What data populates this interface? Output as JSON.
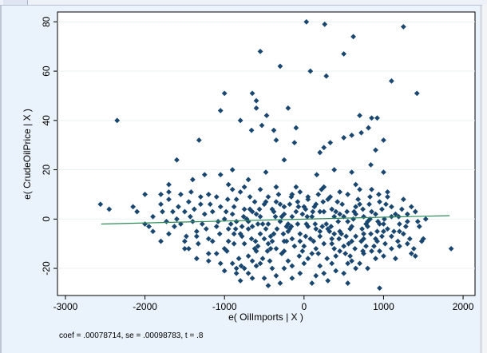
{
  "chart_data": {
    "type": "scatter",
    "title": "",
    "xlabel": "e( OilImports | X )",
    "ylabel": "e( CrudeOilPrice | X )",
    "xlim": [
      -3100,
      2150
    ],
    "ylim": [
      -31,
      84
    ],
    "xticks": [
      -3000,
      -2000,
      -1000,
      0,
      1000,
      2000
    ],
    "yticks": [
      -20,
      0,
      20,
      40,
      60,
      80
    ],
    "grid": "horizontal",
    "marker_color": "#1a476f",
    "fit_color": "#2e8b57",
    "fit_line": {
      "x": [
        -2550,
        1830
      ],
      "y": [
        -2.0,
        1.4
      ]
    },
    "note": "coef = .00078714, se = .00098783, t = .8",
    "points": [
      [
        30,
        80
      ],
      [
        1250,
        78
      ],
      [
        260,
        79
      ],
      [
        620,
        74
      ],
      [
        500,
        67
      ],
      [
        -550,
        68
      ],
      [
        -300,
        62
      ],
      [
        80,
        60
      ],
      [
        280,
        58
      ],
      [
        1100,
        56
      ],
      [
        -1000,
        51
      ],
      [
        -650,
        51
      ],
      [
        -600,
        48
      ],
      [
        -600,
        45
      ],
      [
        -1050,
        44
      ],
      [
        -470,
        42
      ],
      [
        -2350,
        40
      ],
      [
        920,
        41
      ],
      [
        700,
        42
      ],
      [
        -200,
        45
      ],
      [
        -350,
        32
      ],
      [
        -1320,
        32
      ],
      [
        -660,
        36
      ],
      [
        -530,
        38
      ],
      [
        -800,
        40
      ],
      [
        -380,
        36
      ],
      [
        -120,
        31
      ],
      [
        -100,
        37
      ],
      [
        200,
        27
      ],
      [
        250,
        29
      ],
      [
        330,
        31
      ],
      [
        500,
        33
      ],
      [
        600,
        34
      ],
      [
        720,
        35
      ],
      [
        810,
        37
      ],
      [
        850,
        41
      ],
      [
        1420,
        51
      ],
      [
        900,
        28
      ],
      [
        1000,
        32
      ],
      [
        160,
        18
      ],
      [
        380,
        20
      ],
      [
        600,
        19
      ],
      [
        840,
        22
      ],
      [
        1000,
        19
      ],
      [
        -250,
        24
      ],
      [
        -480,
        19
      ],
      [
        -700,
        16
      ],
      [
        -900,
        20
      ],
      [
        -1050,
        18
      ],
      [
        -1250,
        18
      ],
      [
        -1400,
        16
      ],
      [
        -1600,
        24
      ],
      [
        -1700,
        14
      ],
      [
        -1800,
        10
      ],
      [
        -2000,
        10
      ],
      [
        -2150,
        5
      ],
      [
        -2560,
        6
      ],
      [
        -2450,
        4
      ],
      [
        -2100,
        3
      ],
      [
        -1950,
        -3
      ],
      [
        -1700,
        -6
      ],
      [
        -1500,
        -9
      ],
      [
        -1350,
        -16
      ],
      [
        -1100,
        -14
      ],
      [
        -900,
        -18
      ],
      [
        -700,
        -22
      ],
      [
        -500,
        -24
      ],
      [
        -300,
        -26
      ],
      [
        -150,
        -24
      ],
      [
        100,
        -26
      ],
      [
        300,
        -25
      ],
      [
        500,
        -22
      ],
      [
        700,
        -18
      ],
      [
        900,
        -16
      ],
      [
        1100,
        -12
      ],
      [
        1300,
        -10
      ],
      [
        1500,
        -8
      ],
      [
        1850,
        -12
      ],
      [
        950,
        -28
      ],
      [
        -2000,
        -2
      ],
      [
        -1900,
        1
      ],
      [
        -1800,
        6
      ],
      [
        -1650,
        3
      ],
      [
        -1550,
        -2
      ],
      [
        -1450,
        7
      ],
      [
        -1350,
        -5
      ],
      [
        -1250,
        2
      ],
      [
        -1150,
        -9
      ],
      [
        -1050,
        5
      ],
      [
        -950,
        -4
      ],
      [
        -850,
        8
      ],
      [
        -750,
        -10
      ],
      [
        -650,
        3
      ],
      [
        -550,
        -6
      ],
      [
        -450,
        9
      ],
      [
        -350,
        -12
      ],
      [
        -250,
        2
      ],
      [
        -150,
        -8
      ],
      [
        -50,
        11
      ],
      [
        50,
        -3
      ],
      [
        150,
        6
      ],
      [
        250,
        -10
      ],
      [
        350,
        4
      ],
      [
        450,
        -5
      ],
      [
        550,
        10
      ],
      [
        650,
        -7
      ],
      [
        750,
        1
      ],
      [
        850,
        -13
      ],
      [
        950,
        7
      ],
      [
        1050,
        -4
      ],
      [
        1150,
        2
      ],
      [
        1250,
        -6
      ],
      [
        1350,
        5
      ],
      [
        1450,
        -3
      ],
      [
        -1900,
        -5
      ],
      [
        -1700,
        8
      ],
      [
        -1500,
        -12
      ],
      [
        -1300,
        9
      ],
      [
        -1100,
        -3
      ],
      [
        -900,
        12
      ],
      [
        -700,
        -15
      ],
      [
        -500,
        6
      ],
      [
        -300,
        -1
      ],
      [
        -100,
        13
      ],
      [
        100,
        -14
      ],
      [
        300,
        8
      ],
      [
        500,
        -11
      ],
      [
        700,
        12
      ],
      [
        900,
        -8
      ],
      [
        1100,
        5
      ],
      [
        1300,
        -1
      ],
      [
        1400,
        3
      ],
      [
        -1200,
        -8
      ],
      [
        -1000,
        -12
      ],
      [
        -800,
        -6
      ],
      [
        -600,
        -19
      ],
      [
        -400,
        -9
      ],
      [
        -200,
        -17
      ],
      [
        0,
        -11
      ],
      [
        200,
        -19
      ],
      [
        400,
        -15
      ],
      [
        600,
        -9
      ],
      [
        800,
        -20
      ],
      [
        1000,
        -2
      ],
      [
        1200,
        -11
      ],
      [
        1400,
        -15
      ],
      [
        -1800,
        -9
      ],
      [
        -1600,
        0
      ],
      [
        -1400,
        -1
      ],
      [
        -1200,
        -14
      ],
      [
        -1000,
        -21
      ],
      [
        -800,
        -25
      ],
      [
        -600,
        -13
      ],
      [
        -400,
        -20
      ],
      [
        -200,
        -5
      ],
      [
        0,
        -18
      ],
      [
        200,
        -7
      ],
      [
        400,
        -21
      ],
      [
        600,
        -17
      ],
      [
        800,
        -3
      ],
      [
        1000,
        -15
      ],
      [
        1200,
        -5
      ],
      [
        -950,
        -9
      ],
      [
        -850,
        -1
      ],
      [
        -750,
        4
      ],
      [
        -650,
        -3
      ],
      [
        -550,
        1
      ],
      [
        -450,
        -2
      ],
      [
        -350,
        7
      ],
      [
        -250,
        -9
      ],
      [
        -150,
        1
      ],
      [
        -50,
        -6
      ],
      [
        50,
        8
      ],
      [
        150,
        -4
      ],
      [
        250,
        3
      ],
      [
        350,
        -8
      ],
      [
        450,
        2
      ],
      [
        550,
        -1
      ],
      [
        650,
        5
      ],
      [
        750,
        -6
      ],
      [
        850,
        3
      ],
      [
        950,
        -2
      ],
      [
        1050,
        9
      ],
      [
        -880,
        5
      ],
      [
        -780,
        -7
      ],
      [
        -680,
        9
      ],
      [
        -580,
        -11
      ],
      [
        -480,
        -4
      ],
      [
        -380,
        3
      ],
      [
        -280,
        -14
      ],
      [
        -180,
        6
      ],
      [
        -80,
        -2
      ],
      [
        20,
        4
      ],
      [
        120,
        -9
      ],
      [
        220,
        12
      ],
      [
        320,
        -5
      ],
      [
        420,
        7
      ],
      [
        520,
        -14
      ],
      [
        620,
        0
      ],
      [
        720,
        -9
      ],
      [
        820,
        6
      ],
      [
        920,
        -5
      ],
      [
        1020,
        -10
      ],
      [
        -920,
        -2
      ],
      [
        -820,
        -16
      ],
      [
        -720,
        0
      ],
      [
        -620,
        7
      ],
      [
        -520,
        -16
      ],
      [
        -420,
        -7
      ],
      [
        -320,
        10
      ],
      [
        -220,
        -3
      ],
      [
        -120,
        -11
      ],
      [
        -20,
        2
      ],
      [
        80,
        -8
      ],
      [
        180,
        10
      ],
      [
        280,
        -2
      ],
      [
        380,
        -12
      ],
      [
        480,
        6
      ],
      [
        580,
        -4
      ],
      [
        680,
        8
      ],
      [
        780,
        -2
      ],
      [
        880,
        -11
      ],
      [
        980,
        4
      ],
      [
        -960,
        8
      ],
      [
        -860,
        -4
      ],
      [
        -760,
        1
      ],
      [
        -660,
        -8
      ],
      [
        -560,
        4
      ],
      [
        -460,
        -13
      ],
      [
        -360,
        1
      ],
      [
        -260,
        -6
      ],
      [
        -160,
        9
      ],
      [
        -60,
        -15
      ],
      [
        40,
        1
      ],
      [
        140,
        -2
      ],
      [
        240,
        7
      ],
      [
        340,
        -3
      ],
      [
        440,
        -8
      ],
      [
        540,
        3
      ],
      [
        640,
        -12
      ],
      [
        740,
        4
      ],
      [
        840,
        -6
      ],
      [
        940,
        10
      ],
      [
        -1150,
        3
      ],
      [
        -1060,
        -6
      ],
      [
        -970,
        -13
      ],
      [
        -880,
        -10
      ],
      [
        -790,
        -19
      ],
      [
        -700,
        -4
      ],
      [
        -610,
        -9
      ],
      [
        -520,
        -2
      ],
      [
        -430,
        -17
      ],
      [
        -340,
        -4
      ],
      [
        -250,
        5
      ],
      [
        -160,
        -3
      ],
      [
        -70,
        5
      ],
      [
        20,
        -7
      ],
      [
        110,
        3
      ],
      [
        200,
        -5
      ],
      [
        290,
        -16
      ],
      [
        380,
        1
      ],
      [
        470,
        -6
      ],
      [
        560,
        -10
      ],
      [
        650,
        2
      ],
      [
        740,
        -13
      ],
      [
        830,
        0
      ],
      [
        920,
        -9
      ],
      [
        1010,
        0
      ],
      [
        1100,
        -7
      ],
      [
        1190,
        1
      ],
      [
        1280,
        -3
      ],
      [
        -1230,
        -4
      ],
      [
        -1330,
        -10
      ],
      [
        -1430,
        1
      ],
      [
        -1630,
        -3
      ],
      [
        -1730,
        -1
      ],
      [
        -1780,
        3
      ],
      [
        -1580,
        5
      ],
      [
        -1480,
        -7
      ],
      [
        -1380,
        4
      ],
      [
        -1280,
        -2
      ],
      [
        -1180,
        6
      ],
      [
        -1080,
        -1
      ],
      [
        -980,
        3
      ],
      [
        -880,
        -6
      ],
      [
        -780,
        -3
      ],
      [
        -680,
        4
      ],
      [
        -580,
        -2
      ],
      [
        -480,
        7
      ],
      [
        -380,
        -6
      ],
      [
        -280,
        1
      ],
      [
        -180,
        -4
      ],
      [
        -80,
        7
      ],
      [
        30,
        -2
      ],
      [
        130,
        5
      ],
      [
        230,
        -3
      ],
      [
        330,
        9
      ],
      [
        430,
        -1
      ],
      [
        530,
        -7
      ],
      [
        630,
        3
      ],
      [
        730,
        -4
      ],
      [
        830,
        9
      ],
      [
        930,
        -1
      ],
      [
        1030,
        6
      ],
      [
        1130,
        -5
      ],
      [
        1230,
        4
      ],
      [
        1330,
        -8
      ],
      [
        1430,
        -1
      ],
      [
        1530,
        0
      ],
      [
        1480,
        -9
      ],
      [
        1380,
        -12
      ],
      [
        1180,
        -9
      ],
      [
        -850,
        -22
      ],
      [
        -650,
        -24
      ],
      [
        -450,
        -27
      ],
      [
        -250,
        -20
      ],
      [
        -50,
        -22
      ],
      [
        150,
        -23
      ],
      [
        350,
        -18
      ],
      [
        550,
        -26
      ],
      [
        750,
        -14
      ],
      [
        -750,
        -20
      ],
      [
        -550,
        -18
      ],
      [
        -350,
        -23
      ],
      [
        -150,
        -19
      ],
      [
        50,
        -16
      ],
      [
        250,
        -22
      ],
      [
        450,
        -13
      ],
      [
        650,
        -20
      ],
      [
        -1500,
        3
      ],
      [
        -1100,
        9
      ],
      [
        -1000,
        0
      ],
      [
        -900,
        2
      ],
      [
        -800,
        11
      ],
      [
        -700,
        -1
      ],
      [
        -600,
        2
      ],
      [
        -500,
        -8
      ],
      [
        -400,
        4
      ],
      [
        -300,
        6
      ],
      [
        -200,
        -2
      ],
      [
        -100,
        3
      ],
      [
        0,
        5
      ],
      [
        100,
        1
      ],
      [
        200,
        3
      ],
      [
        300,
        -4
      ],
      [
        400,
        3
      ],
      [
        500,
        1
      ],
      [
        600,
        -3
      ],
      [
        700,
        6
      ],
      [
        800,
        -1
      ],
      [
        900,
        2
      ],
      [
        1000,
        -5
      ],
      [
        1100,
        1
      ],
      [
        1200,
        -2
      ],
      [
        1300,
        2
      ],
      [
        -1450,
        -12
      ],
      [
        -1200,
        10
      ],
      [
        -950,
        14
      ],
      [
        -750,
        13
      ],
      [
        -550,
        12
      ],
      [
        -350,
        13
      ],
      [
        -150,
        10
      ],
      [
        50,
        9
      ],
      [
        250,
        13
      ],
      [
        450,
        11
      ],
      [
        650,
        14
      ],
      [
        850,
        12
      ],
      [
        1050,
        11
      ],
      [
        1250,
        8
      ],
      [
        -1050,
        -18
      ],
      [
        -850,
        -20
      ],
      [
        -650,
        -17
      ],
      [
        -450,
        -10
      ],
      [
        -250,
        -13
      ],
      [
        -50,
        -9
      ],
      [
        150,
        -12
      ],
      [
        350,
        -10
      ],
      [
        550,
        -18
      ],
      [
        750,
        -8
      ],
      [
        950,
        -13
      ],
      [
        1150,
        -16
      ],
      [
        1350,
        -14
      ],
      [
        -1700,
        11
      ],
      [
        -1550,
        10
      ],
      [
        -1420,
        11
      ],
      [
        -1300,
        6
      ],
      [
        -1200,
        -17
      ],
      [
        -1350,
        -7
      ],
      [
        -620,
        -12
      ],
      [
        -420,
        -12
      ],
      [
        -220,
        -9
      ],
      [
        -20,
        -13
      ],
      [
        180,
        -14
      ],
      [
        380,
        -6
      ],
      [
        580,
        -15
      ],
      [
        780,
        -11
      ],
      [
        980,
        -7
      ]
    ]
  }
}
